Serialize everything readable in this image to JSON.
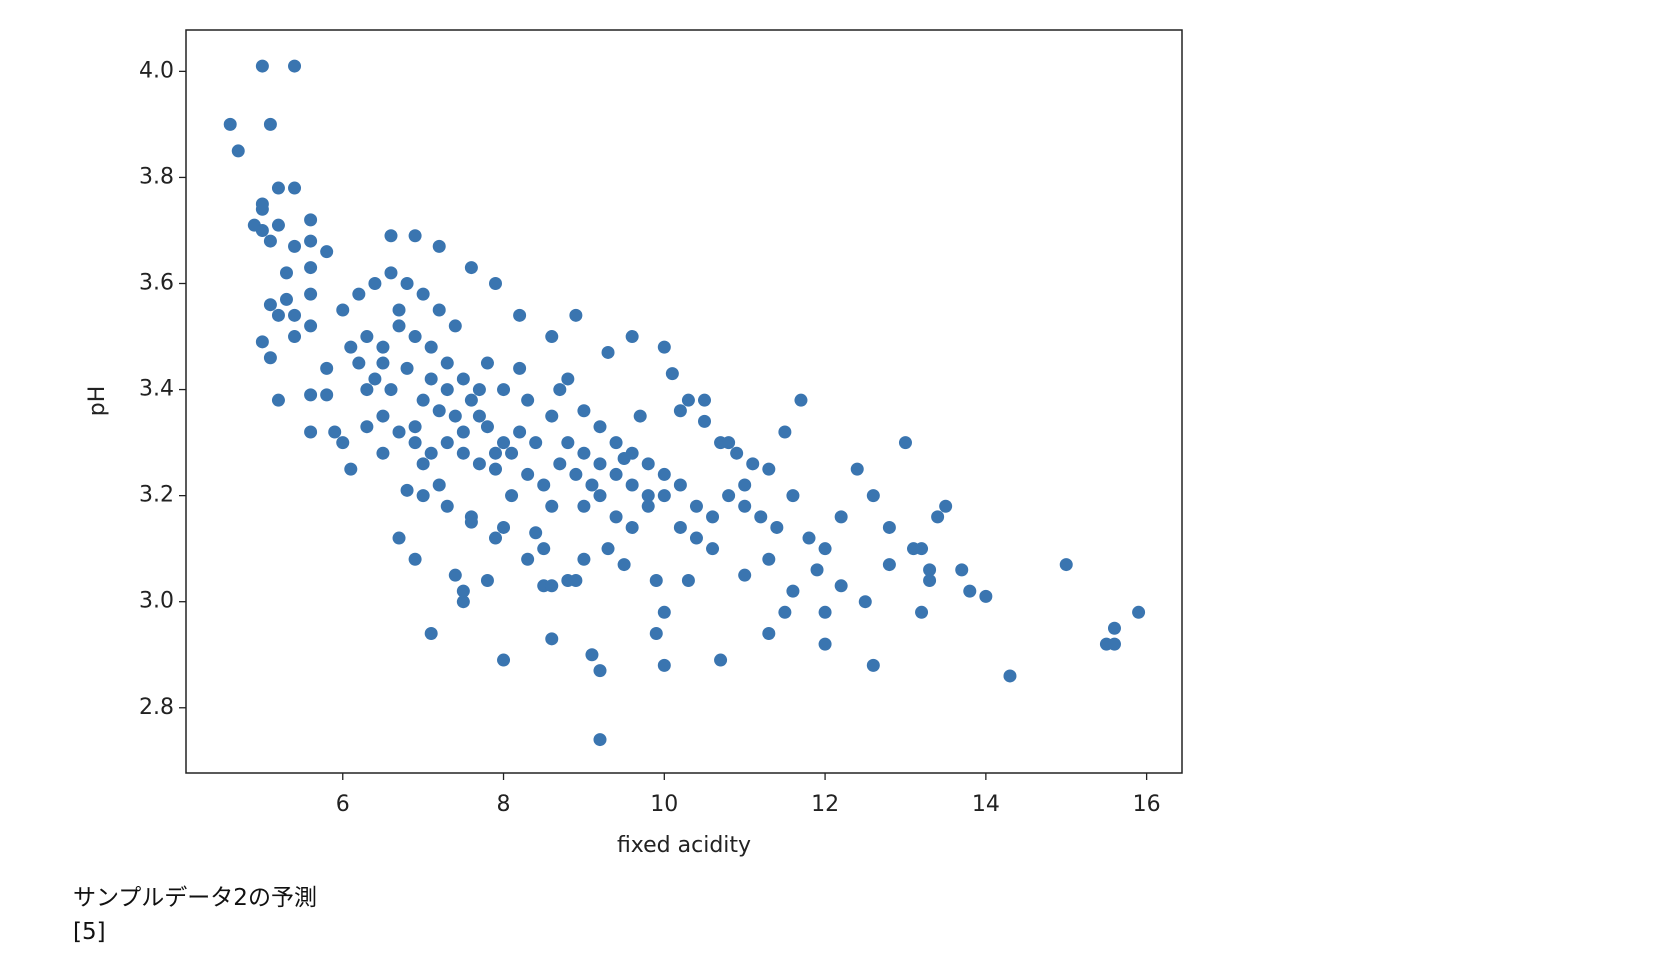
{
  "chart_data": {
    "type": "scatter",
    "xlabel": "fixed acidity",
    "ylabel": "pH",
    "color": "#3a75b0",
    "xlim": [
      4.05,
      16.44
    ],
    "ylim": [
      2.677,
      4.078
    ],
    "xticks": [
      6,
      8,
      10,
      12,
      14,
      16
    ],
    "yticks": [
      2.8,
      {
        "value": 3,
        "label": "3.0"
      },
      3.2,
      3.4,
      3.6,
      3.8,
      {
        "value": 4,
        "label": "4.0"
      }
    ],
    "x": [
      5.0,
      5.4,
      4.6,
      5.1,
      4.7,
      5.2,
      5.4,
      5.0,
      5.0,
      4.9,
      5.0,
      5.2,
      5.1,
      5.6,
      5.6,
      5.4,
      5.6,
      5.8,
      5.3,
      5.1,
      5.3,
      5.6,
      5.2,
      5.4,
      5.0,
      5.1,
      5.4,
      5.6,
      5.8,
      5.2,
      5.6,
      5.8,
      5.6,
      5.9,
      6.0,
      6.1,
      6.2,
      6.4,
      6.6,
      6.8,
      7.0,
      7.2,
      7.4,
      6.3,
      6.5,
      6.7,
      6.9,
      7.1,
      7.3,
      7.5,
      7.7,
      6.2,
      6.4,
      6.6,
      6.8,
      7.0,
      7.2,
      7.4,
      7.6,
      7.8,
      8.0,
      8.2,
      6.5,
      6.7,
      6.9,
      7.1,
      7.3,
      7.5,
      7.7,
      7.9,
      8.1,
      8.3,
      8.5,
      8.7,
      8.9,
      9.1,
      6.6,
      6.9,
      7.2,
      7.6,
      7.9,
      8.2,
      8.6,
      8.9,
      9.3,
      9.6,
      6.0,
      6.1,
      6.3,
      6.5,
      6.8,
      7.0,
      7.3,
      7.6,
      7.9,
      8.4,
      8.0,
      8.3,
      8.6,
      8.8,
      9.0,
      9.2,
      9.4,
      9.6,
      9.8,
      10.0,
      9.0,
      9.2,
      9.4,
      9.6,
      9.8,
      10.0,
      10.2,
      10.4,
      10.6,
      10.8,
      10.0,
      10.1,
      10.3,
      10.5,
      10.7,
      10.9,
      11.1,
      11.3,
      11.5,
      11.7,
      11.0,
      11.2,
      11.4,
      11.6,
      11.8,
      12.0,
      12.2,
      12.4,
      12.6,
      12.8,
      11.0,
      11.3,
      11.6,
      11.9,
      12.2,
      12.5,
      12.8,
      13.1,
      12.0,
      11.5,
      6.7,
      6.9,
      7.4,
      7.5,
      7.5,
      7.8,
      8.3,
      8.5,
      8.6,
      8.8,
      9.0,
      8.5,
      8.0,
      7.6,
      7.2,
      7.0,
      7.8,
      8.2,
      8.7,
      9.5,
      9.7,
      10.2,
      10.5,
      10.8,
      11.0,
      10.6,
      10.3,
      9.9,
      9.5,
      9.3,
      6.3,
      6.5,
      6.7,
      6.9,
      7.1,
      7.3,
      7.5,
      7.7,
      7.9,
      8.1,
      8.4,
      8.6,
      8.8,
      9.0,
      9.2,
      9.4,
      9.6,
      9.8,
      10.2,
      10.4,
      15.0,
      15.9,
      15.6,
      15.5,
      15.6,
      14.3,
      14.0,
      13.8,
      13.7,
      13.3,
      13.3,
      13.5,
      13.4,
      13.0,
      13.2,
      13.2,
      12.6,
      12.0,
      11.3,
      10.7,
      10.0,
      9.9,
      9.1,
      9.2,
      9.2,
      8.6,
      8.0,
      7.1,
      10.0,
      8.9
    ],
    "values": [
      4.01,
      4.01,
      3.9,
      3.9,
      3.85,
      3.78,
      3.78,
      3.74,
      3.75,
      3.71,
      3.7,
      3.71,
      3.68,
      3.72,
      3.68,
      3.67,
      3.63,
      3.66,
      3.62,
      3.56,
      3.57,
      3.58,
      3.54,
      3.54,
      3.49,
      3.46,
      3.5,
      3.52,
      3.44,
      3.38,
      3.39,
      3.39,
      3.32,
      3.32,
      3.3,
      3.25,
      3.58,
      3.6,
      3.62,
      3.6,
      3.58,
      3.55,
      3.52,
      3.5,
      3.48,
      3.52,
      3.5,
      3.48,
      3.45,
      3.42,
      3.4,
      3.45,
      3.42,
      3.4,
      3.44,
      3.38,
      3.36,
      3.35,
      3.38,
      3.33,
      3.3,
      3.32,
      3.35,
      3.32,
      3.3,
      3.28,
      3.3,
      3.28,
      3.26,
      3.25,
      3.28,
      3.24,
      3.22,
      3.26,
      3.24,
      3.22,
      3.69,
      3.69,
      3.67,
      3.63,
      3.6,
      3.54,
      3.5,
      3.54,
      3.47,
      3.5,
      3.55,
      3.48,
      3.4,
      3.28,
      3.21,
      3.2,
      3.18,
      3.15,
      3.12,
      3.13,
      3.4,
      3.38,
      3.35,
      3.42,
      3.36,
      3.33,
      3.3,
      3.28,
      3.26,
      3.24,
      3.18,
      3.2,
      3.16,
      3.14,
      3.18,
      3.2,
      3.22,
      3.18,
      3.16,
      3.2,
      3.48,
      3.43,
      3.38,
      3.34,
      3.3,
      3.28,
      3.26,
      3.25,
      3.32,
      3.38,
      3.18,
      3.16,
      3.14,
      3.2,
      3.12,
      3.1,
      3.16,
      3.25,
      3.2,
      3.14,
      3.05,
      3.08,
      3.02,
      3.06,
      3.03,
      3.0,
      3.07,
      3.1,
      2.98,
      2.98,
      3.12,
      3.08,
      3.05,
      3.0,
      3.02,
      3.04,
      3.08,
      3.03,
      3.03,
      3.04,
      3.08,
      3.1,
      3.14,
      3.16,
      3.22,
      3.26,
      3.45,
      3.44,
      3.4,
      3.27,
      3.35,
      3.36,
      3.38,
      3.3,
      3.22,
      3.1,
      3.04,
      3.04,
      3.07,
      3.1,
      3.33,
      3.45,
      3.55,
      3.33,
      3.42,
      3.4,
      3.32,
      3.35,
      3.28,
      3.2,
      3.3,
      3.18,
      3.3,
      3.28,
      3.26,
      3.24,
      3.22,
      3.2,
      3.14,
      3.12,
      3.07,
      2.98,
      2.95,
      2.92,
      2.92,
      2.86,
      3.01,
      3.02,
      3.06,
      3.04,
      3.06,
      3.18,
      3.16,
      3.3,
      2.98,
      3.1,
      2.88,
      2.92,
      2.94,
      2.89,
      2.88,
      2.94,
      2.9,
      2.87,
      2.74,
      2.93,
      2.89,
      2.94,
      2.98,
      3.04
    ]
  },
  "cell_output": {
    "text": "サンプルデータ2の予測",
    "result": "[5]"
  }
}
